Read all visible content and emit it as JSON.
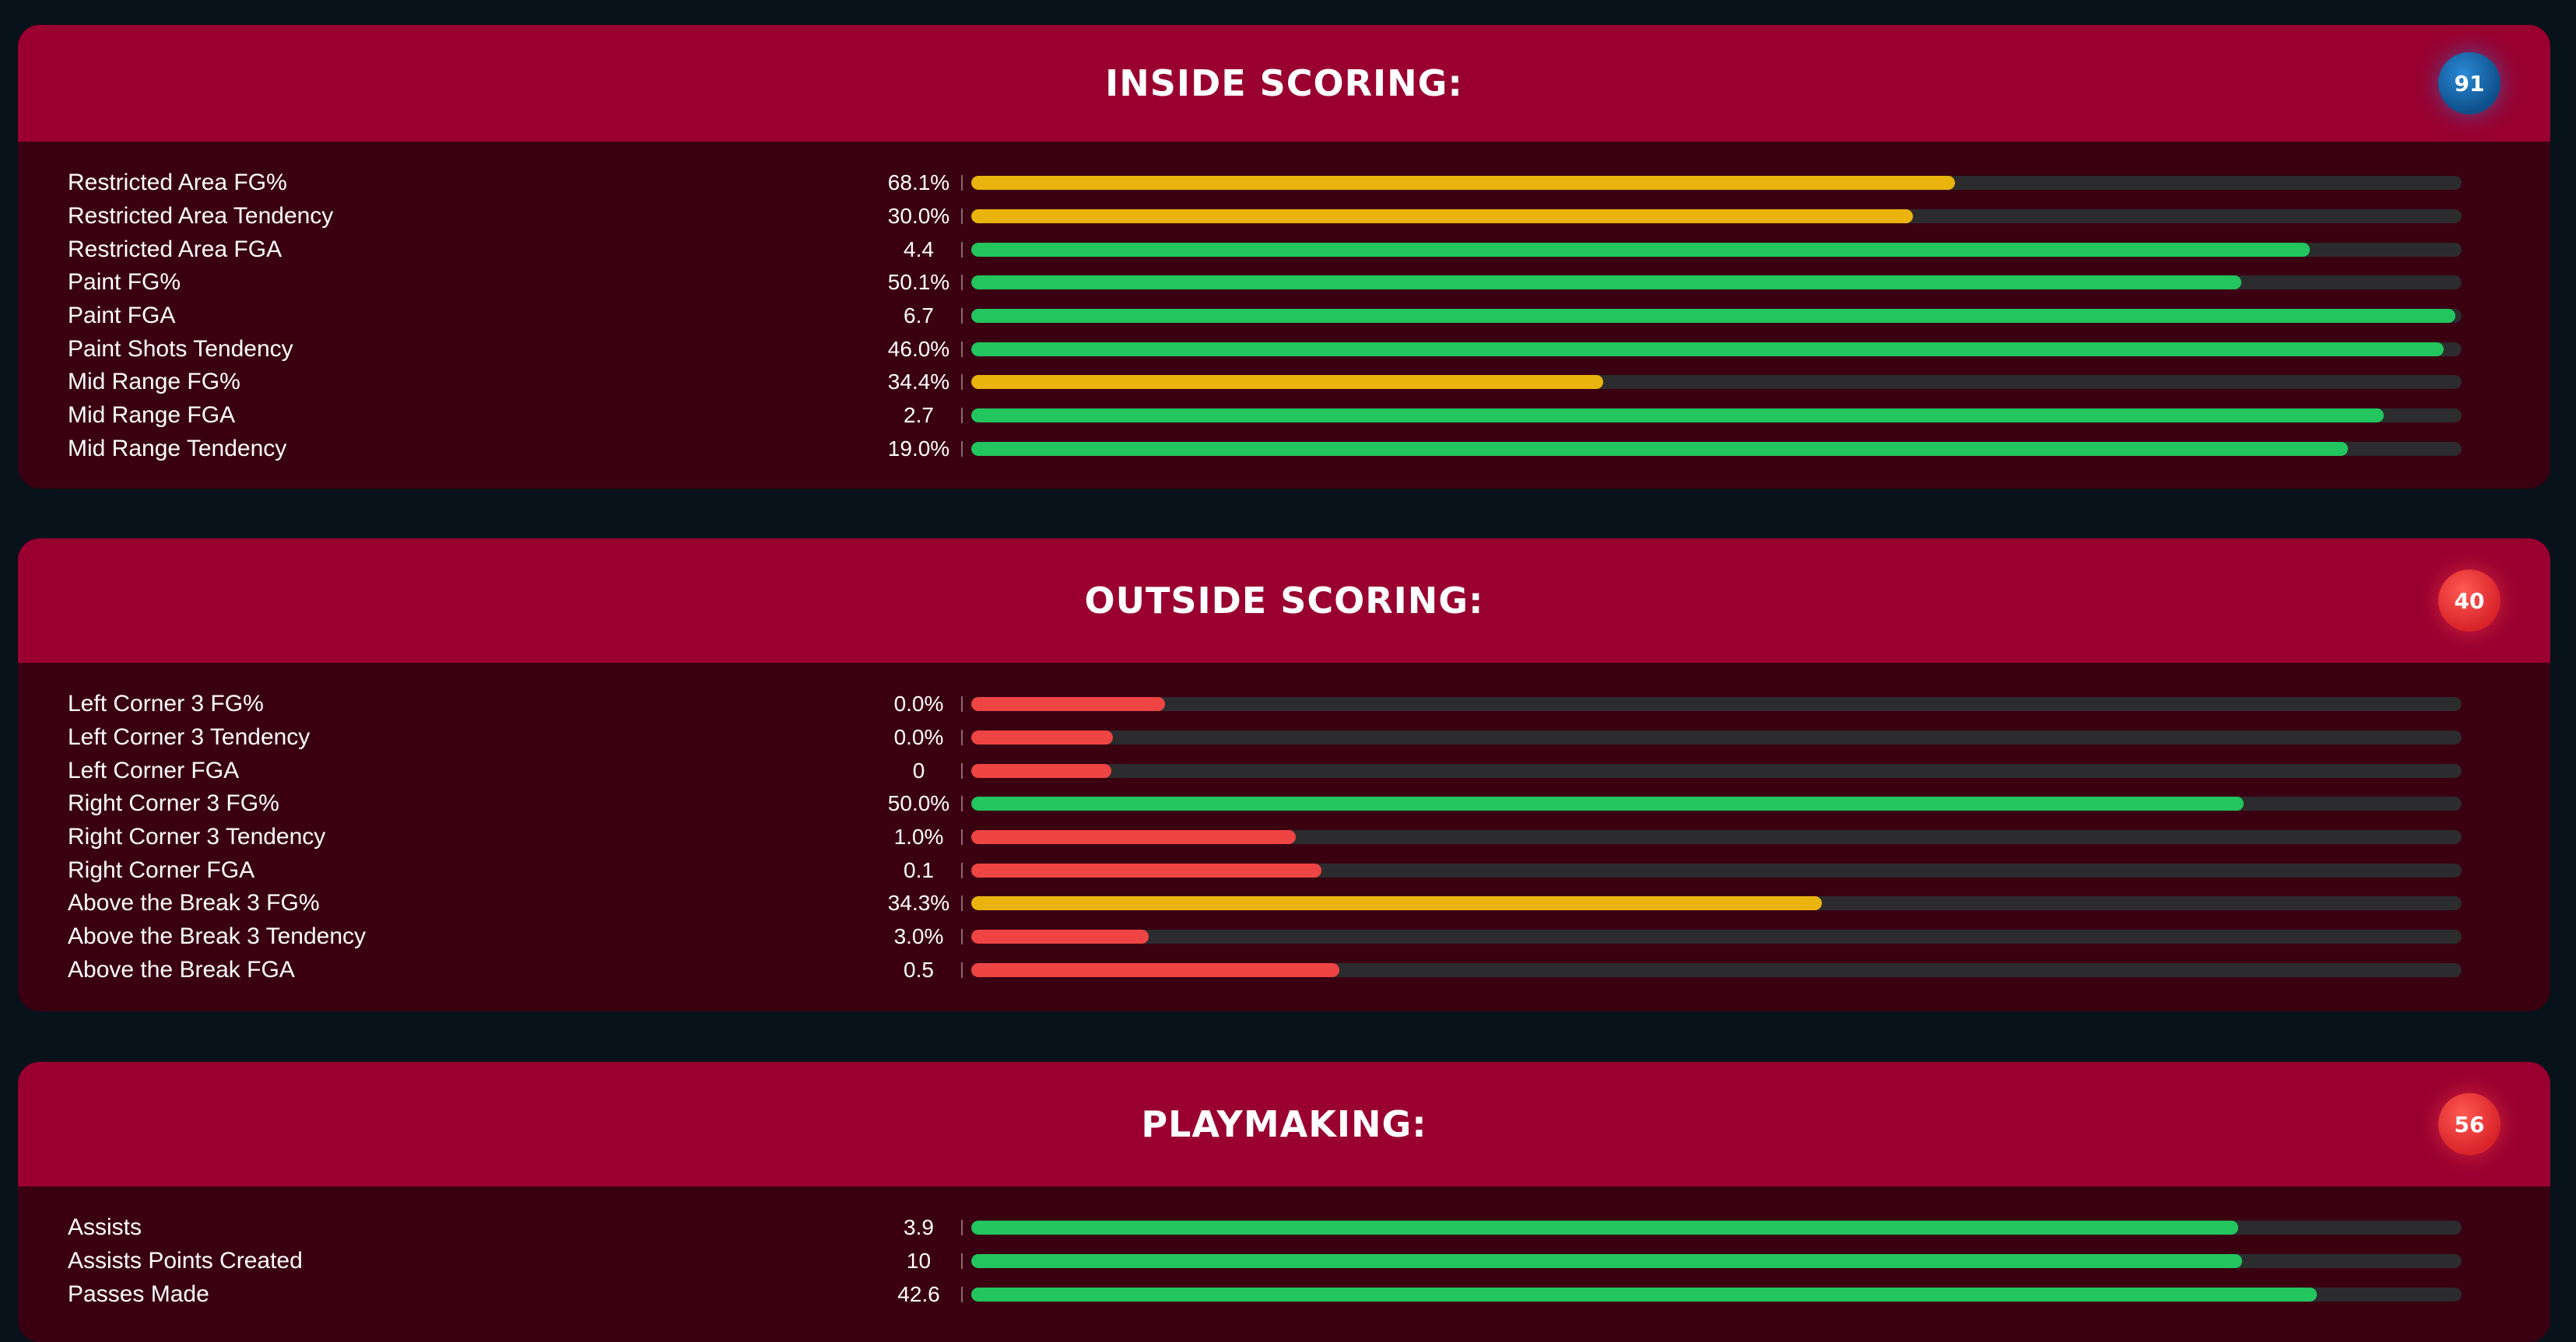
{
  "sections": [
    {
      "title": "INSIDE SCORING:",
      "badge": "91",
      "badge_color": "blue",
      "rows": [
        {
          "label": "Restricted Area FG%",
          "value": "68.1%",
          "level": 0.66,
          "color": "yellow"
        },
        {
          "label": "Restricted Area Tendency",
          "value": "30.0%",
          "level": 0.632,
          "color": "yellow"
        },
        {
          "label": "Restricted Area FGA",
          "value": "4.4",
          "level": 0.898,
          "color": "green"
        },
        {
          "label": "Paint FG%",
          "value": "50.1%",
          "level": 0.852,
          "color": "green"
        },
        {
          "label": "Paint FGA",
          "value": "6.7",
          "level": 0.996,
          "color": "green"
        },
        {
          "label": "Paint Shots Tendency",
          "value": "46.0%",
          "level": 0.988,
          "color": "green"
        },
        {
          "label": "Mid Range FG%",
          "value": "34.4%",
          "level": 0.424,
          "color": "yellow"
        },
        {
          "label": "Mid Range FGA",
          "value": "2.7",
          "level": 0.948,
          "color": "green"
        },
        {
          "label": "Mid Range Tendency",
          "value": "19.0%",
          "level": 0.924,
          "color": "green"
        }
      ]
    },
    {
      "title": "OUTSIDE SCORING:",
      "badge": "40",
      "badge_color": "red",
      "rows": [
        {
          "label": "Left Corner 3 FG%",
          "value": "0.0%",
          "level": 0.13,
          "color": "red"
        },
        {
          "label": "Left Corner 3 Tendency",
          "value": "0.0%",
          "level": 0.095,
          "color": "red"
        },
        {
          "label": "Left Corner FGA",
          "value": "0",
          "level": 0.094,
          "color": "red"
        },
        {
          "label": "Right Corner 3 FG%",
          "value": "50.0%",
          "level": 0.854,
          "color": "green"
        },
        {
          "label": "Right Corner 3 Tendency",
          "value": "1.0%",
          "level": 0.218,
          "color": "red"
        },
        {
          "label": "Right Corner FGA",
          "value": "0.1",
          "level": 0.235,
          "color": "red"
        },
        {
          "label": "Above the Break 3 FG%",
          "value": "34.3%",
          "level": 0.571,
          "color": "yellow"
        },
        {
          "label": "Above the Break 3 Tendency",
          "value": "3.0%",
          "level": 0.119,
          "color": "red"
        },
        {
          "label": "Above the Break FGA",
          "value": "0.5",
          "level": 0.247,
          "color": "red"
        }
      ]
    },
    {
      "title": "PLAYMAKING:",
      "badge": "56",
      "badge_color": "red",
      "rows": [
        {
          "label": "Assists",
          "value": "3.9",
          "level": 0.85,
          "color": "green"
        },
        {
          "label": "Assists Points Created",
          "value": "10",
          "level": 0.853,
          "color": "green"
        },
        {
          "label": "Passes Made",
          "value": "42.6",
          "level": 0.903,
          "color": "green"
        }
      ]
    }
  ]
}
